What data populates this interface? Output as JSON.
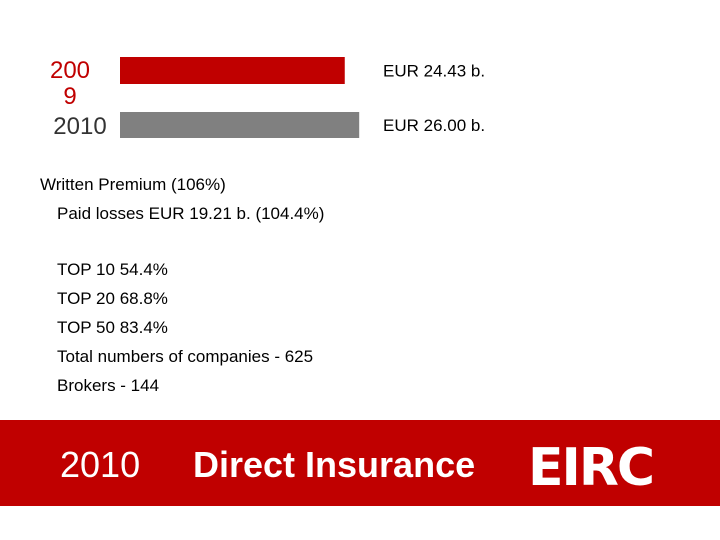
{
  "chart_data": {
    "type": "bar",
    "orientation": "horizontal",
    "categories": [
      "2009",
      "2010"
    ],
    "values": [
      24.43,
      26.0
    ],
    "value_labels": [
      "EUR 24.43 b.",
      "EUR 26.00 b."
    ],
    "colors": [
      "#c00000",
      "#808080"
    ]
  },
  "notes": {
    "written_premium": "Written Premium  (106%)",
    "paid_losses": "Paid losses  EUR 19.21 b. (104.4%)",
    "lines": [
      "TOP 10   54.4%",
      "TOP 20   68.8%",
      "TOP 50   83.4%",
      "Total numbers of companies  - 625",
      "Brokers  - 144"
    ]
  },
  "footer": {
    "year": "2010",
    "title": "Direct Insurance",
    "logo": "EIRC"
  }
}
